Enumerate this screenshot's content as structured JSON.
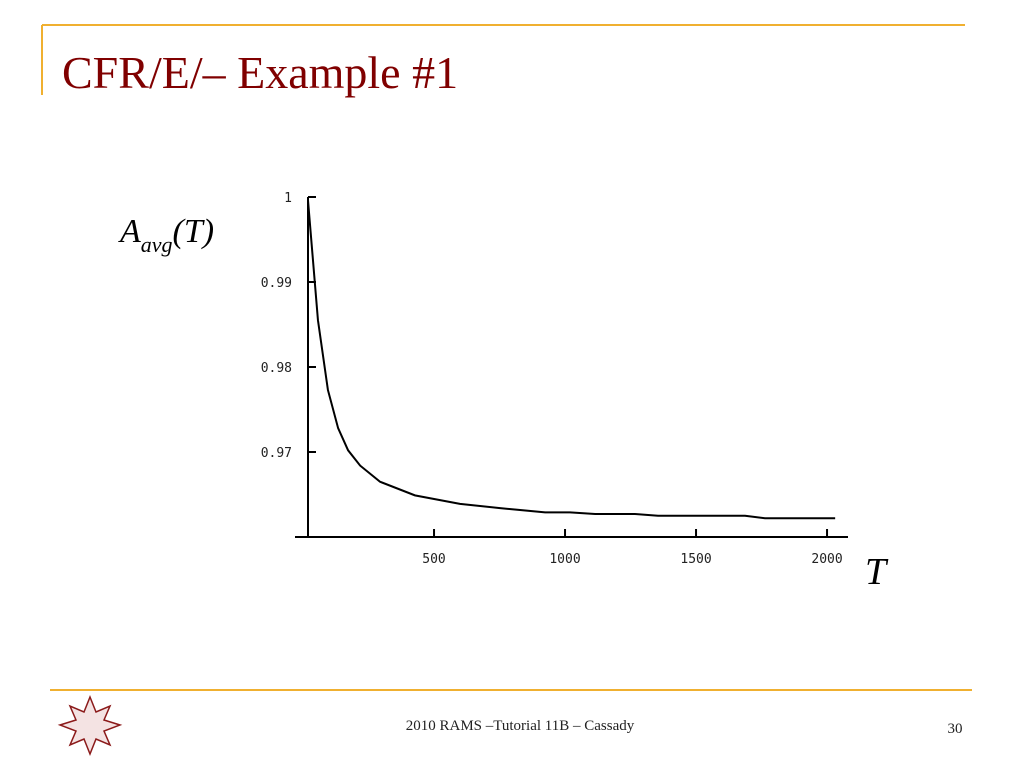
{
  "slide": {
    "title": "CFR/E/– Example #1",
    "footer": "2010 RAMS –Tutorial 11B – Cassady",
    "page_number": "30"
  },
  "chart_data": {
    "type": "line",
    "ylabel": [
      "A",
      "avg",
      "(T)"
    ],
    "xlabel": "T",
    "xlim": [
      19,
      2080
    ],
    "ylim": [
      0.96,
      1
    ],
    "xticks": [
      500,
      1000,
      1500,
      2000
    ],
    "yticks": [
      0.97,
      0.98,
      0.99,
      1
    ],
    "x": [
      19,
      57,
      95,
      134,
      172,
      218,
      294,
      427,
      599,
      752,
      924,
      1019,
      1115,
      1267,
      1355,
      1687,
      1763,
      2031
    ],
    "series": [
      {
        "color": "#000000",
        "values": [
          0.9996,
          0.9855,
          0.9773,
          0.9728,
          0.9702,
          0.9684,
          0.9665,
          0.9649,
          0.9639,
          0.9634,
          0.9629,
          0.9629,
          0.9627,
          0.9627,
          0.9625,
          0.9625,
          0.9622,
          0.9622
        ]
      }
    ]
  }
}
